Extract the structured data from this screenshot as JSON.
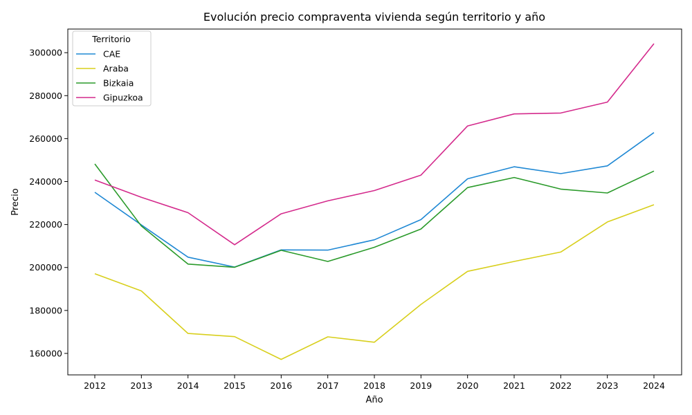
{
  "chart_data": {
    "type": "line",
    "title": "Evolución precio compraventa vivienda según territorio y año",
    "xlabel": "Año",
    "ylabel": "Precio",
    "x": [
      "2012",
      "2013",
      "2014",
      "2015",
      "2016",
      "2017",
      "2018",
      "2019",
      "2020",
      "2021",
      "2022",
      "2023",
      "2024"
    ],
    "ylim": [
      150000,
      311000
    ],
    "yticks": [
      "160000",
      "180000",
      "200000",
      "220000",
      "240000",
      "260000",
      "280000",
      "300000"
    ],
    "grid": false,
    "legend": {
      "title": "Territorio",
      "placement": "top-left"
    },
    "series": [
      {
        "name": "CAE",
        "color": "#1f88d4",
        "values": [
          235000,
          219800,
          204800,
          200200,
          208200,
          208100,
          212900,
          222300,
          241300,
          246900,
          243700,
          247300,
          262800
        ]
      },
      {
        "name": "Araba",
        "color": "#d8cf1c",
        "values": [
          197100,
          189100,
          169300,
          167800,
          157200,
          167700,
          165200,
          182800,
          198200,
          202800,
          207200,
          221200,
          229200
        ]
      },
      {
        "name": "Bizkaia",
        "color": "#2a9a2a",
        "values": [
          248200,
          219300,
          201600,
          200100,
          208000,
          202800,
          209400,
          217900,
          237200,
          241900,
          236500,
          234700,
          244900
        ]
      },
      {
        "name": "Gipuzkoa",
        "color": "#d42a8c",
        "values": [
          240700,
          232700,
          225500,
          210600,
          225000,
          231000,
          235800,
          243000,
          265900,
          271500,
          271900,
          277000,
          304200
        ]
      }
    ]
  }
}
